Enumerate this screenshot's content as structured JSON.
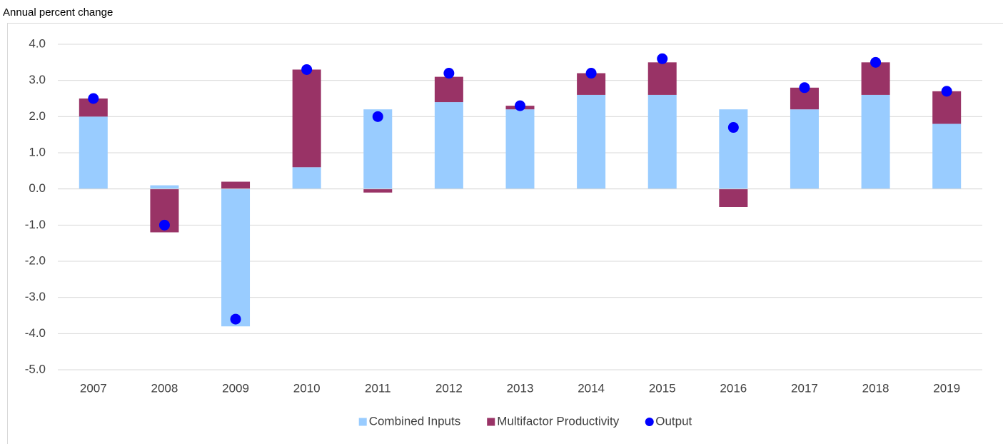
{
  "chart_data": {
    "type": "bar",
    "stacked": true,
    "y_axis_label": "Annual percent change",
    "categories": [
      "2007",
      "2008",
      "2009",
      "2010",
      "2011",
      "2012",
      "2013",
      "2014",
      "2015",
      "2016",
      "2017",
      "2018",
      "2019"
    ],
    "series": [
      {
        "name": "Combined Inputs",
        "type": "bar",
        "color": "#99ccff",
        "values": [
          2.0,
          0.1,
          -3.8,
          0.6,
          2.2,
          2.4,
          2.2,
          2.6,
          2.6,
          2.2,
          2.2,
          2.6,
          1.8
        ]
      },
      {
        "name": "Multifactor Productivity",
        "type": "bar",
        "color": "#993366",
        "values": [
          0.5,
          -1.2,
          0.2,
          2.7,
          -0.1,
          0.7,
          0.1,
          0.6,
          0.9,
          -0.5,
          0.6,
          0.9,
          0.9
        ]
      },
      {
        "name": "Output",
        "type": "scatter",
        "color": "#0000ff",
        "values": [
          2.5,
          -1.0,
          -3.6,
          3.3,
          2.0,
          3.2,
          2.3,
          3.2,
          3.6,
          1.7,
          2.8,
          3.5,
          2.7
        ]
      }
    ],
    "ylim": [
      -5,
      4
    ],
    "yticks": [
      {
        "value": -5,
        "label": "-5.0"
      },
      {
        "value": -4,
        "label": "-4.0"
      },
      {
        "value": -3,
        "label": "-3.0"
      },
      {
        "value": -2,
        "label": "-2.0"
      },
      {
        "value": -1,
        "label": "-1.0"
      },
      {
        "value": 0,
        "label": "0.0"
      },
      {
        "value": 1,
        "label": "1.0"
      },
      {
        "value": 2,
        "label": "2.0"
      },
      {
        "value": 3,
        "label": "3.0"
      },
      {
        "value": 4,
        "label": "4.0"
      }
    ],
    "grid": true,
    "legend": "bottom"
  }
}
